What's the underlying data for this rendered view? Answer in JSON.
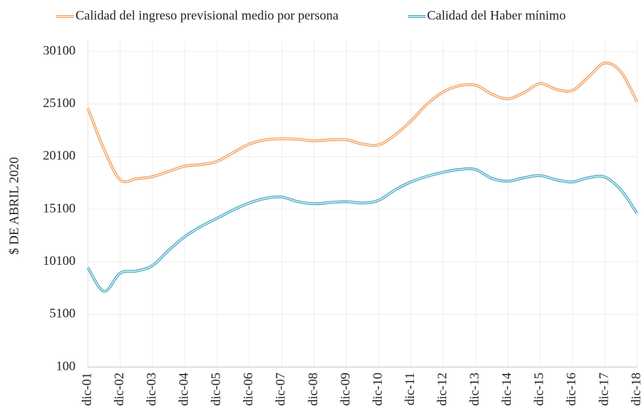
{
  "chart_data": {
    "type": "line",
    "y_label": "$  DE ABRIL 2020",
    "categories": [
      "dic-01",
      null,
      "dic-02",
      null,
      "dic-03",
      null,
      "dic-04",
      null,
      "dic-05",
      null,
      "dic-06",
      null,
      "dic-07",
      null,
      "dic-08",
      null,
      "dic-09",
      null,
      "dic-10",
      null,
      "dic-11",
      null,
      "dic-12",
      null,
      "dic-13",
      null,
      "dic-14",
      null,
      "dic-15",
      null,
      "dic-16",
      null,
      "dic-17",
      null,
      "dic-18"
    ],
    "series": [
      {
        "name": "Calidad del ingreso previsional medio por persona",
        "color": "#f0a060",
        "values": [
          24700,
          20800,
          17900,
          18000,
          18200,
          18700,
          19200,
          19350,
          19650,
          20500,
          21300,
          21700,
          21800,
          21750,
          21600,
          21700,
          21700,
          21300,
          21230,
          22150,
          23500,
          25100,
          26250,
          26850,
          26900,
          26050,
          25600,
          26200,
          27050,
          26500,
          26400,
          27700,
          29000,
          28150,
          25300
        ]
      },
      {
        "name": "Calidad del Haber mínimo",
        "color": "#4aaac4",
        "values": [
          9560,
          7300,
          9030,
          9230,
          9750,
          11200,
          12500,
          13470,
          14250,
          15040,
          15700,
          16140,
          16270,
          15820,
          15620,
          15750,
          15820,
          15700,
          15950,
          16930,
          17700,
          18230,
          18620,
          18880,
          18880,
          18040,
          17770,
          18100,
          18300,
          17900,
          17700,
          18100,
          18160,
          16930,
          14710
        ]
      }
    ],
    "ylim": [
      100,
      30100
    ],
    "yticks": [
      100,
      5100,
      10100,
      15100,
      20100,
      25100,
      30100
    ],
    "grid": true
  }
}
